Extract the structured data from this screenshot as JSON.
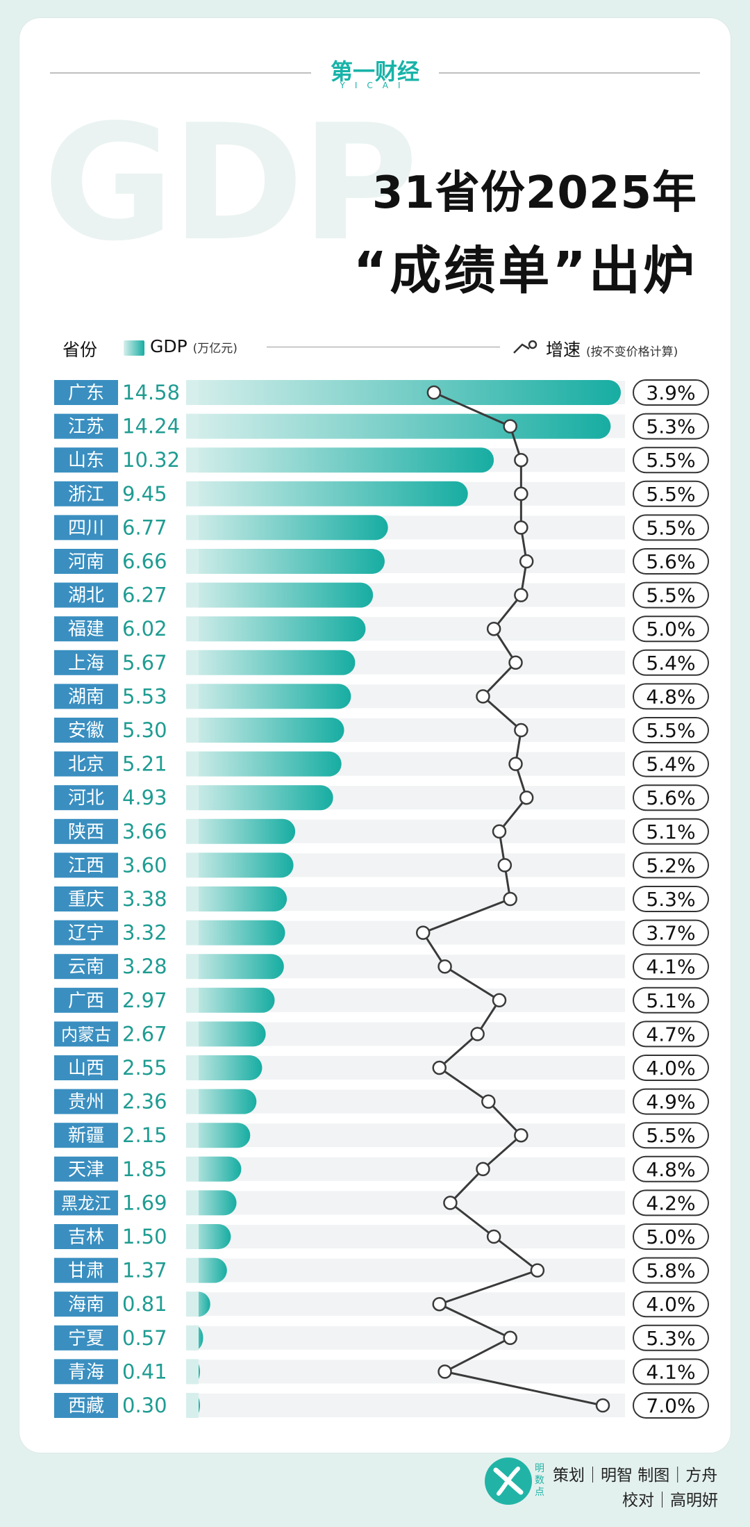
{
  "brand": {
    "name": "第一财经",
    "sub": "YICAI"
  },
  "background_text": "GDP",
  "title": {
    "line1": "31省份2025年",
    "line2": "“成绩单”出炉"
  },
  "header": {
    "province": "省份",
    "gdp": "GDP",
    "gdp_unit": "(万亿元)",
    "growth": "增速",
    "growth_note": "(按不变价格计算)"
  },
  "colors": {
    "teal": "#17ada2",
    "teal_light": "#d7efec",
    "label_bg": "#3a8fc0",
    "track": "#f1f3f4",
    "line": "#3a3a3a"
  },
  "chart_data": {
    "type": "bar",
    "categories": [
      "广东",
      "江苏",
      "山东",
      "浙江",
      "四川",
      "河南",
      "湖北",
      "福建",
      "上海",
      "湖南",
      "安徽",
      "北京",
      "河北",
      "陕西",
      "江西",
      "重庆",
      "辽宁",
      "云南",
      "广西",
      "内蒙古",
      "山西",
      "贵州",
      "新疆",
      "天津",
      "黑龙江",
      "吉林",
      "甘肃",
      "海南",
      "宁夏",
      "青海",
      "西藏"
    ],
    "series": [
      {
        "name": "GDP",
        "unit": "万亿元",
        "values": [
          14.58,
          14.24,
          10.32,
          9.45,
          6.77,
          6.66,
          6.27,
          6.02,
          5.67,
          5.53,
          5.3,
          5.21,
          4.93,
          3.66,
          3.6,
          3.38,
          3.32,
          3.28,
          2.97,
          2.67,
          2.55,
          2.36,
          2.15,
          1.85,
          1.69,
          1.5,
          1.37,
          0.81,
          0.57,
          0.41,
          0.3
        ],
        "labels": [
          "14.58",
          "14.24",
          "10.32",
          "9.45",
          "6.77",
          "6.66",
          "6.27",
          "6.02",
          "5.67",
          "5.53",
          "5.30",
          "5.21",
          "4.93",
          "3.66",
          "3.60",
          "3.38",
          "3.32",
          "3.28",
          "2.97",
          "2.67",
          "2.55",
          "2.36",
          "2.15",
          "1.85",
          "1.69",
          "1.50",
          "1.37",
          "0.81",
          "0.57",
          "0.41",
          "0.30"
        ]
      },
      {
        "name": "增速",
        "unit": "%",
        "values": [
          3.9,
          5.3,
          5.5,
          5.5,
          5.5,
          5.6,
          5.5,
          5.0,
          5.4,
          4.8,
          5.5,
          5.4,
          5.6,
          5.1,
          5.2,
          5.3,
          3.7,
          4.1,
          5.1,
          4.7,
          4.0,
          4.9,
          5.5,
          4.8,
          4.2,
          5.0,
          5.8,
          4.0,
          5.3,
          4.1,
          7.0
        ],
        "labels": [
          "3.9%",
          "5.3%",
          "5.5%",
          "5.5%",
          "5.5%",
          "5.6%",
          "5.5%",
          "5.0%",
          "5.4%",
          "4.8%",
          "5.5%",
          "5.4%",
          "5.6%",
          "5.1%",
          "5.2%",
          "5.3%",
          "3.7%",
          "4.1%",
          "5.1%",
          "4.7%",
          "4.0%",
          "4.9%",
          "5.5%",
          "4.8%",
          "4.2%",
          "5.0%",
          "5.8%",
          "4.0%",
          "5.3%",
          "4.1%",
          "7.0%"
        ]
      }
    ],
    "gdp_axis_range": [
      0,
      14.58
    ],
    "growth_axis_range": [
      3.2,
      7.0
    ],
    "grid": false,
    "legend": "top"
  },
  "credits": {
    "line1": "策划｜明智  制图｜方舟",
    "line2": "校对｜高明妍",
    "logo_text": "明数点"
  }
}
